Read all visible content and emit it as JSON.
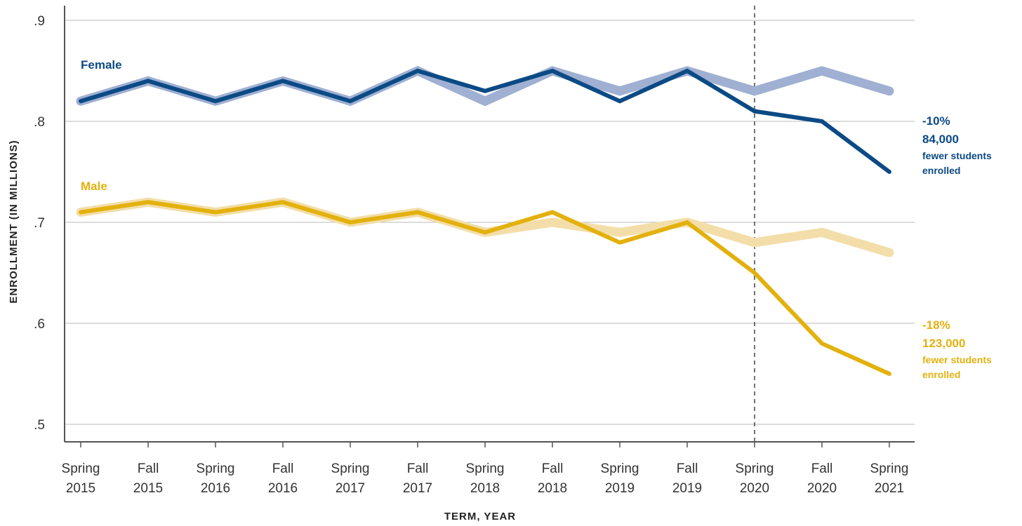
{
  "chart_data": {
    "type": "line",
    "xlabel": "TERM, YEAR",
    "ylabel": "ENROLLMENT (IN MILLIONS)",
    "ylim": [
      0.5,
      0.9
    ],
    "yticks": [
      ".5",
      ".6",
      ".7",
      ".8",
      ".9"
    ],
    "grid": "horizontal",
    "categories": [
      [
        "Spring",
        "2015"
      ],
      [
        "Fall",
        "2015"
      ],
      [
        "Spring",
        "2016"
      ],
      [
        "Fall",
        "2016"
      ],
      [
        "Spring",
        "2017"
      ],
      [
        "Fall",
        "2017"
      ],
      [
        "Spring",
        "2018"
      ],
      [
        "Fall",
        "2018"
      ],
      [
        "Spring",
        "2019"
      ],
      [
        "Fall",
        "2019"
      ],
      [
        "Spring",
        "2020"
      ],
      [
        "Fall",
        "2020"
      ],
      [
        "Spring",
        "2021"
      ]
    ],
    "divider_category_index": 10,
    "series": [
      {
        "name": "Female",
        "role": "actual",
        "color": "#0b4a85",
        "values": [
          0.82,
          0.84,
          0.82,
          0.84,
          0.82,
          0.85,
          0.83,
          0.85,
          0.82,
          0.85,
          0.81,
          0.8,
          0.75
        ]
      },
      {
        "role": "projected",
        "group": "Female",
        "color": "#9fb0d2",
        "values": [
          0.82,
          0.84,
          0.82,
          0.84,
          0.82,
          0.85,
          0.82,
          0.85,
          0.83,
          0.85,
          0.83,
          0.85,
          0.83
        ]
      },
      {
        "name": "Male",
        "role": "actual",
        "color": "#e3b10e",
        "values": [
          0.71,
          0.72,
          0.71,
          0.72,
          0.7,
          0.71,
          0.69,
          0.71,
          0.68,
          0.7,
          0.65,
          0.58,
          0.55
        ]
      },
      {
        "role": "projected",
        "group": "Male",
        "color": "#f3deaa",
        "values": [
          0.71,
          0.72,
          0.71,
          0.72,
          0.7,
          0.71,
          0.69,
          0.7,
          0.69,
          0.7,
          0.68,
          0.69,
          0.67
        ]
      }
    ],
    "annotations": [
      {
        "group": "Female",
        "percent": "-10%",
        "count": "84,000",
        "line1": "fewer students",
        "line2": "enrolled",
        "color": "#0b4a85"
      },
      {
        "group": "Male",
        "percent": "-18%",
        "count": "123,000",
        "line1": "fewer students",
        "line2": "enrolled",
        "color": "#e3b10e"
      }
    ]
  }
}
